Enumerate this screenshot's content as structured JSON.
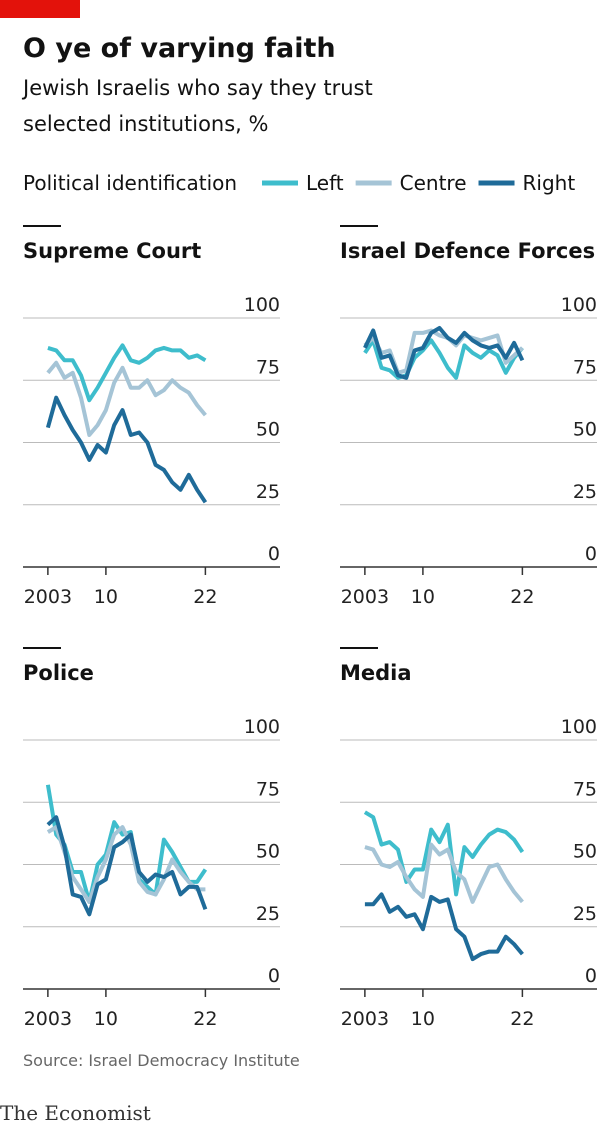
{
  "header": {
    "title": "O ye of varying faith",
    "subtitle": [
      "Jewish Israelis who say they trust",
      "selected institutions, %"
    ]
  },
  "legend_title": "Political identification",
  "source": "Source: Israel Democracy Institute",
  "brand": "The Economist",
  "chart_data": [
    {
      "type": "line",
      "title": "Supreme Court",
      "x": [
        2003,
        2004,
        2005,
        2006,
        2007,
        2008,
        2009,
        2010,
        2011,
        2012,
        2013,
        2014,
        2015,
        2016,
        2017,
        2018,
        2019,
        2020,
        2021,
        2022
      ],
      "xlim": [
        2000,
        2031
      ],
      "xticks": [
        {
          "value": 2003,
          "label": "2003"
        },
        {
          "value": 2010,
          "label": "10"
        },
        {
          "value": 2022,
          "label": "22"
        }
      ],
      "ylim": [
        0,
        100
      ],
      "yticks": [
        0,
        25,
        50,
        75,
        100
      ],
      "grid": true,
      "series": [
        {
          "name": "Left",
          "color": "#3ebdcc",
          "values": [
            88,
            87,
            83,
            83,
            77,
            67,
            72,
            78,
            84,
            89,
            83,
            82,
            84,
            87,
            88,
            87,
            87,
            84,
            85,
            83
          ]
        },
        {
          "name": "Centre",
          "color": "#a5c4d6",
          "values": [
            78,
            82,
            76,
            78,
            68,
            53,
            57,
            63,
            74,
            80,
            72,
            72,
            75,
            69,
            71,
            75,
            72,
            70,
            65,
            61
          ]
        },
        {
          "name": "Right",
          "color": "#1f6b99",
          "values": [
            56,
            68,
            61,
            55,
            50,
            43,
            49,
            46,
            57,
            63,
            53,
            54,
            50,
            41,
            39,
            34,
            31,
            37,
            31,
            26
          ]
        }
      ]
    },
    {
      "type": "line",
      "title": "Israel Defence Forces",
      "x": [
        2003,
        2004,
        2005,
        2006,
        2007,
        2008,
        2009,
        2010,
        2011,
        2012,
        2013,
        2014,
        2015,
        2016,
        2017,
        2018,
        2019,
        2020,
        2021,
        2022
      ],
      "xlim": [
        2000,
        2031
      ],
      "xticks": [
        {
          "value": 2003,
          "label": "2003"
        },
        {
          "value": 2010,
          "label": "10"
        },
        {
          "value": 2022,
          "label": "22"
        }
      ],
      "ylim": [
        0,
        100
      ],
      "yticks": [
        0,
        25,
        50,
        75,
        100
      ],
      "grid": true,
      "series": [
        {
          "name": "Left",
          "color": "#3ebdcc",
          "values": [
            86,
            91,
            80,
            79,
            76,
            77,
            84,
            87,
            91,
            86,
            80,
            76,
            89,
            86,
            84,
            87,
            85,
            78,
            84,
            88
          ]
        },
        {
          "name": "Centre",
          "color": "#a5c4d6",
          "values": [
            89,
            92,
            86,
            87,
            78,
            79,
            94,
            94,
            95,
            93,
            92,
            89,
            93,
            92,
            91,
            92,
            93,
            82,
            85,
            88
          ]
        },
        {
          "name": "Right",
          "color": "#1f6b99",
          "values": [
            88,
            95,
            84,
            85,
            77,
            76,
            87,
            88,
            94,
            96,
            92,
            90,
            94,
            91,
            89,
            88,
            89,
            84,
            90,
            83
          ]
        }
      ]
    },
    {
      "type": "line",
      "title": "Police",
      "x": [
        2003,
        2004,
        2005,
        2006,
        2007,
        2008,
        2009,
        2010,
        2011,
        2012,
        2013,
        2014,
        2015,
        2016,
        2017,
        2018,
        2019,
        2020,
        2021,
        2022
      ],
      "xlim": [
        2000,
        2031
      ],
      "xticks": [
        {
          "value": 2003,
          "label": "2003"
        },
        {
          "value": 2010,
          "label": "10"
        },
        {
          "value": 2022,
          "label": "22"
        }
      ],
      "ylim": [
        0,
        100
      ],
      "yticks": [
        0,
        25,
        50,
        75,
        100
      ],
      "grid": true,
      "series": [
        {
          "name": "Left",
          "color": "#3ebdcc",
          "values": [
            82,
            62,
            58,
            47,
            47,
            35,
            50,
            54,
            67,
            62,
            63,
            44,
            41,
            38,
            60,
            55,
            49,
            43,
            43,
            48
          ]
        },
        {
          "name": "Centre",
          "color": "#a5c4d6",
          "values": [
            63,
            65,
            55,
            45,
            40,
            35,
            45,
            52,
            62,
            65,
            58,
            43,
            39,
            38,
            44,
            52,
            47,
            43,
            40,
            40
          ]
        },
        {
          "name": "Right",
          "color": "#1f6b99",
          "values": [
            66,
            69,
            57,
            38,
            37,
            30,
            42,
            44,
            57,
            59,
            62,
            47,
            43,
            46,
            45,
            47,
            38,
            41,
            41,
            32
          ]
        }
      ]
    },
    {
      "type": "line",
      "title": "Media",
      "x": [
        2003,
        2004,
        2005,
        2006,
        2007,
        2008,
        2009,
        2010,
        2011,
        2012,
        2013,
        2014,
        2015,
        2016,
        2017,
        2018,
        2019,
        2020,
        2021,
        2022
      ],
      "xlim": [
        2000,
        2031
      ],
      "xticks": [
        {
          "value": 2003,
          "label": "2003"
        },
        {
          "value": 2010,
          "label": "10"
        },
        {
          "value": 2022,
          "label": "22"
        }
      ],
      "ylim": [
        0,
        100
      ],
      "yticks": [
        0,
        25,
        50,
        75,
        100
      ],
      "grid": true,
      "series": [
        {
          "name": "Left",
          "color": "#3ebdcc",
          "values": [
            71,
            69,
            58,
            59,
            56,
            43,
            48,
            48,
            64,
            59,
            66,
            38,
            57,
            53,
            58,
            62,
            64,
            63,
            60,
            55
          ]
        },
        {
          "name": "Centre",
          "color": "#a5c4d6",
          "values": [
            57,
            56,
            50,
            49,
            51,
            45,
            40,
            37,
            58,
            54,
            56,
            47,
            44,
            35,
            42,
            49,
            50,
            44,
            39,
            35
          ]
        },
        {
          "name": "Right",
          "color": "#1f6b99",
          "values": [
            34,
            34,
            38,
            31,
            33,
            29,
            30,
            24,
            37,
            35,
            36,
            24,
            21,
            12,
            14,
            15,
            15,
            21,
            18,
            14
          ]
        }
      ]
    }
  ]
}
